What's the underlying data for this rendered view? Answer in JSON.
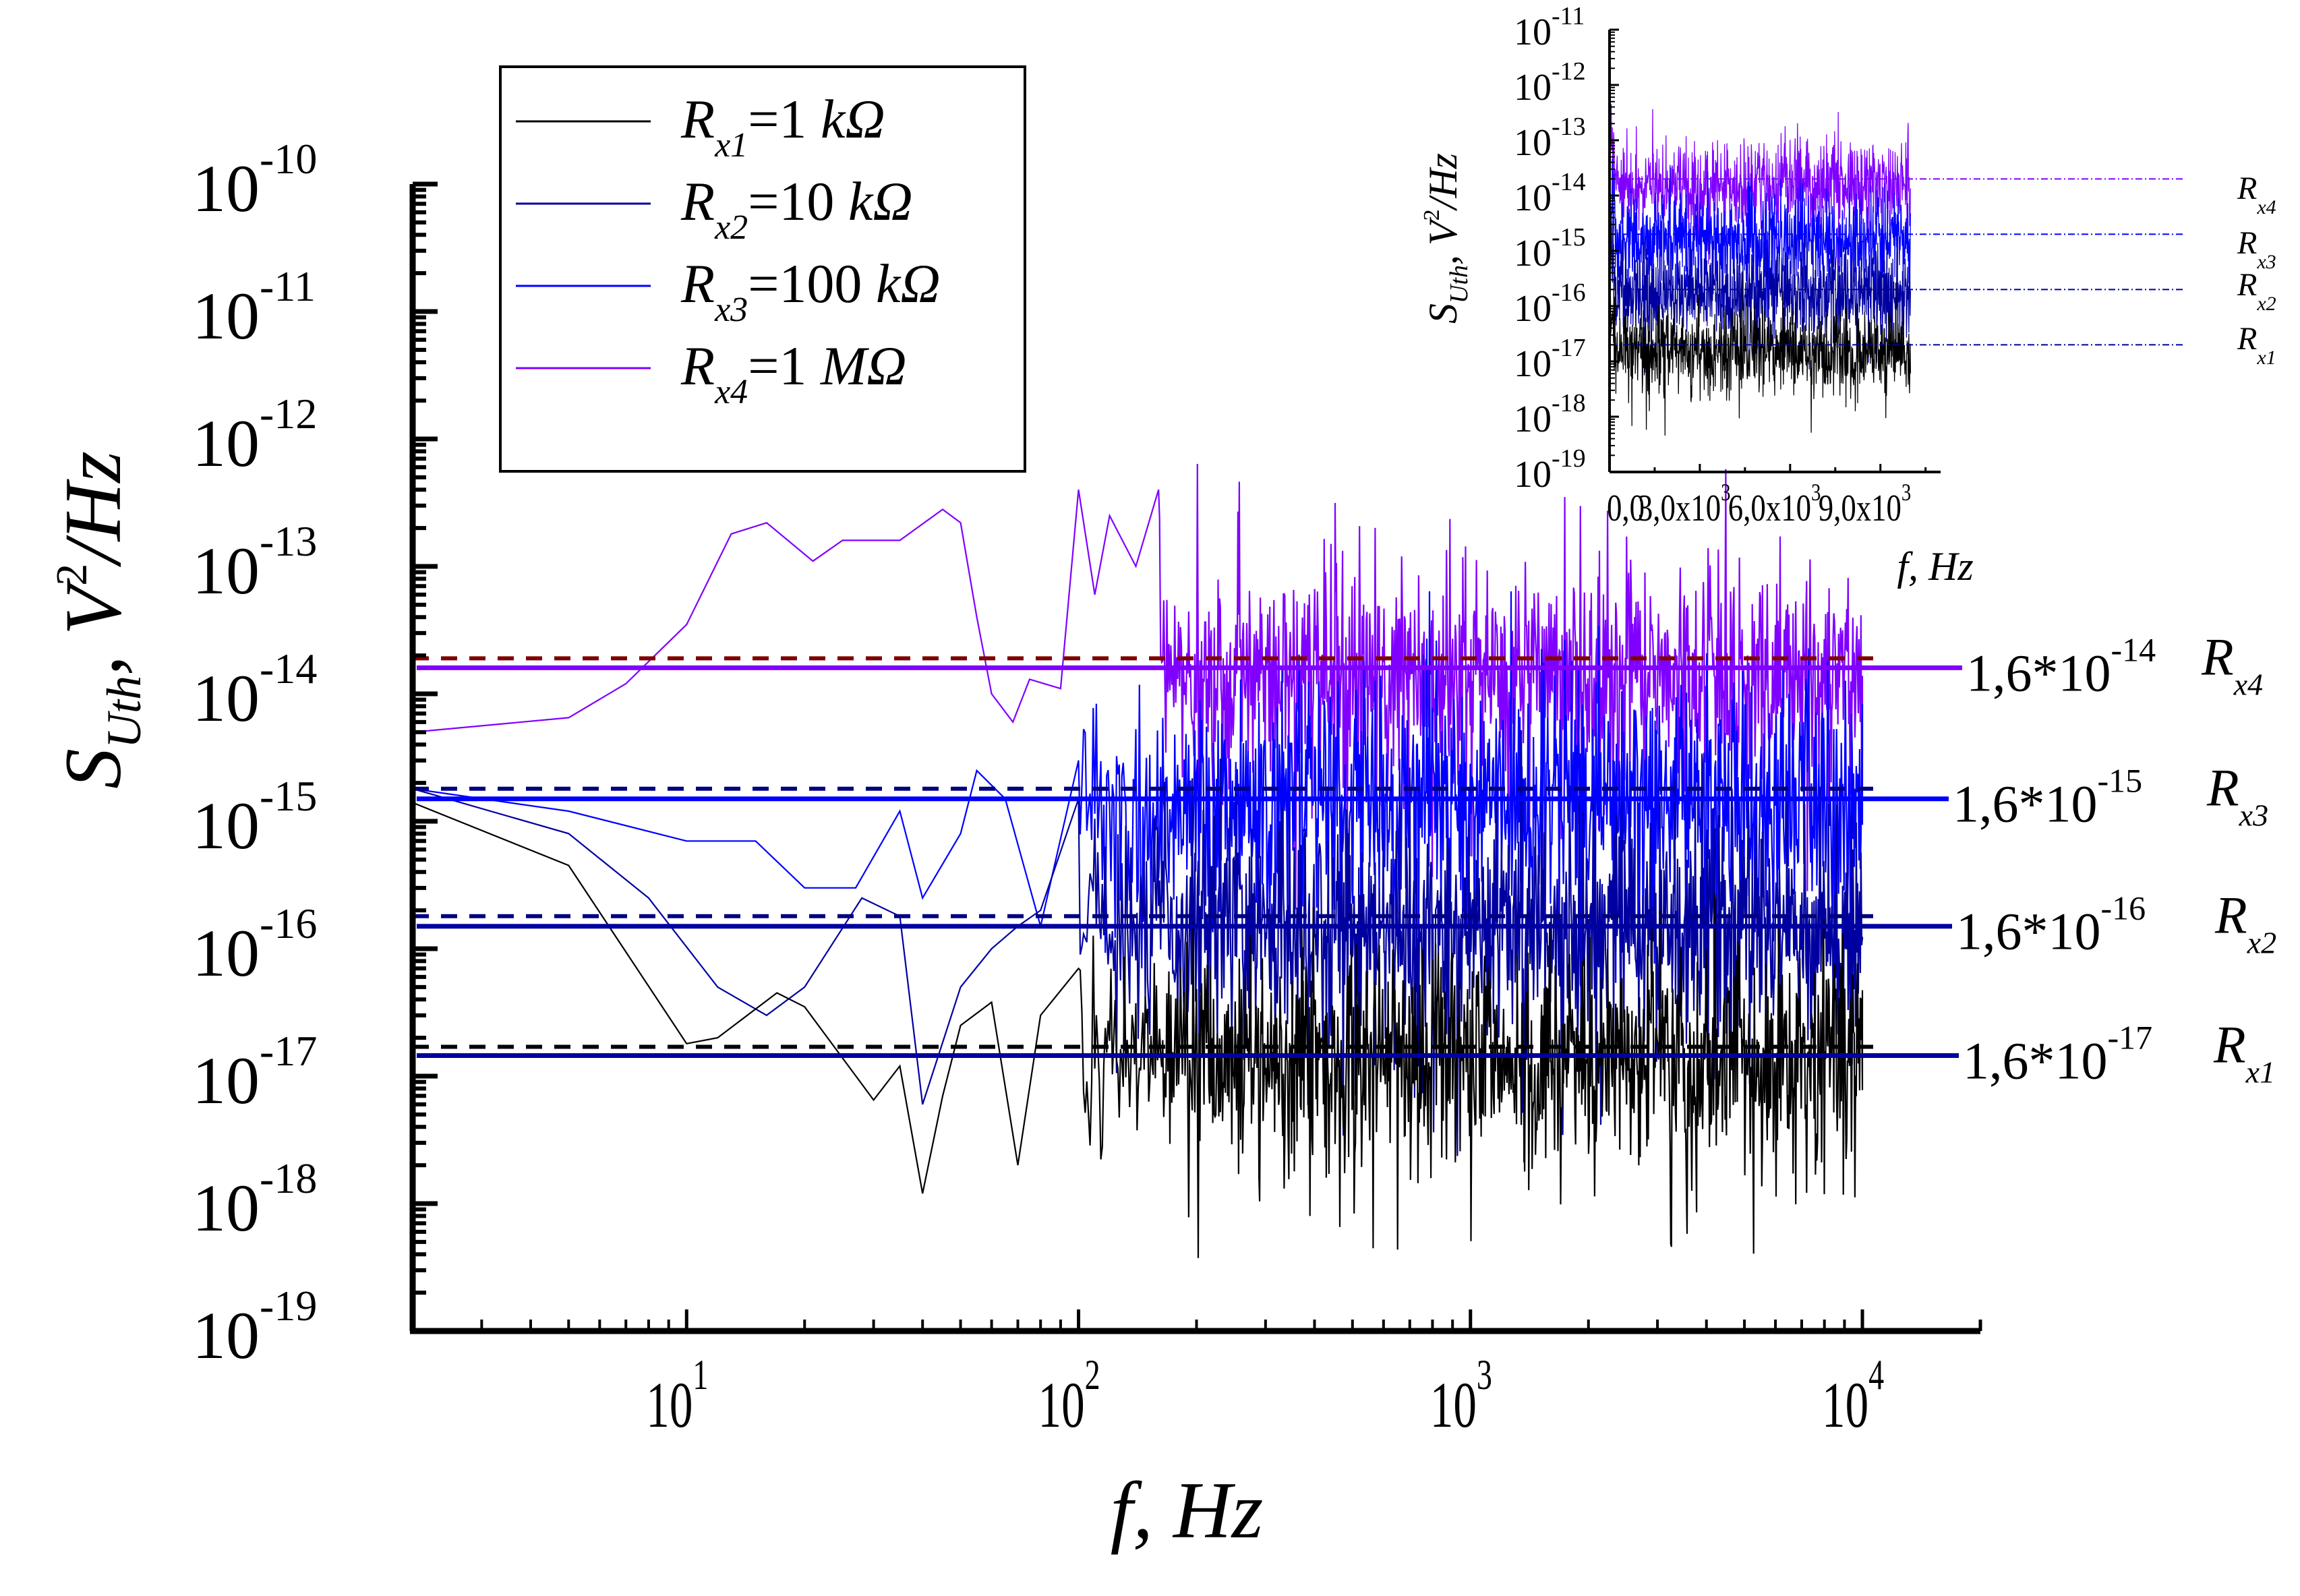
{
  "chart_data": [
    {
      "id": "main",
      "type": "line",
      "xscale": "log",
      "yscale": "log",
      "xlim": [
        2,
        20000
      ],
      "ylim": [
        1e-19,
        1e-10
      ],
      "xlabel": "f, Hz",
      "ylabel": {
        "main": "S",
        "sub": "Uth",
        "sep": ",",
        "unit_base": "V",
        "unit_sup": "2",
        "unit_rest": "/Hz"
      },
      "x_ticks": [
        {
          "base": "10",
          "exp": "1",
          "value": 10
        },
        {
          "base": "10",
          "exp": "2",
          "value": 100
        },
        {
          "base": "10",
          "exp": "3",
          "value": 1000
        },
        {
          "base": "10",
          "exp": "4",
          "value": 10000
        }
      ],
      "y_ticks": [
        {
          "base": "10",
          "exp": "-10",
          "value": 1e-10
        },
        {
          "base": "10",
          "exp": "-11",
          "value": 1e-11
        },
        {
          "base": "10",
          "exp": "-12",
          "value": 1e-12
        },
        {
          "base": "10",
          "exp": "-13",
          "value": 1e-13
        },
        {
          "base": "10",
          "exp": "-14",
          "value": 1e-14
        },
        {
          "base": "10",
          "exp": "-15",
          "value": 1e-15
        },
        {
          "base": "10",
          "exp": "-16",
          "value": 1e-16
        },
        {
          "base": "10",
          "exp": "-17",
          "value": 1e-17
        },
        {
          "base": "10",
          "exp": "-18",
          "value": 1e-18
        },
        {
          "base": "10",
          "exp": "-19",
          "value": 1e-19
        }
      ],
      "legend": {
        "placement": "top-left",
        "entries": [
          {
            "R": "R",
            "sub": "x1",
            "value": "=1 ",
            "unit": "kΩ",
            "color": "#000000"
          },
          {
            "R": "R",
            "sub": "x2",
            "value": "=10 ",
            "unit": "kΩ",
            "color": "#0000A0"
          },
          {
            "R": "R",
            "sub": "x3",
            "value": "=100 ",
            "unit": "kΩ",
            "color": "#0000FF"
          },
          {
            "R": "R",
            "sub": "x4",
            "value": "=1 ",
            "unit": "MΩ",
            "color": "#8000FF"
          }
        ]
      },
      "series": [
        {
          "name": "Rx1=1 kΩ",
          "color": "#000000",
          "x_start": 2,
          "x_end": 10000,
          "mean": 1.6e-17,
          "noise_decades": 0.55,
          "low_freq_points": [
            [
              2,
              1.4e-15
            ],
            [
              5,
              4.5e-16
            ],
            [
              10,
              1.8e-17
            ],
            [
              12,
              2e-17
            ],
            [
              17,
              4.5e-17
            ],
            [
              20,
              3.5e-17
            ],
            [
              30,
              6.5e-18
            ],
            [
              35,
              1.2e-17
            ],
            [
              40,
              1.2e-18
            ],
            [
              45,
              7e-18
            ],
            [
              50,
              2.5e-17
            ],
            [
              60,
              3.8e-17
            ],
            [
              70,
              2e-18
            ],
            [
              80,
              3e-17
            ],
            [
              100,
              7e-17
            ]
          ],
          "min_spike": 1.3e-19
        },
        {
          "name": "Rx2=10 kΩ",
          "color": "#0000A0",
          "x_start": 2,
          "x_end": 10000,
          "mean": 1.6e-16,
          "noise_decades": 0.6,
          "low_freq_points": [
            [
              2,
              1.8e-15
            ],
            [
              5,
              8e-16
            ],
            [
              8,
              2.5e-16
            ],
            [
              12,
              5e-17
            ],
            [
              16,
              3e-17
            ],
            [
              20,
              5e-17
            ],
            [
              28,
              2.5e-16
            ],
            [
              35,
              1.8e-16
            ],
            [
              40,
              6e-18
            ],
            [
              50,
              5e-17
            ],
            [
              60,
              1e-16
            ],
            [
              70,
              1.5e-16
            ],
            [
              80,
              2e-16
            ],
            [
              100,
              1.5e-15
            ]
          ],
          "min_spike": 3e-18
        },
        {
          "name": "Rx3=100 kΩ",
          "color": "#0000FF",
          "x_start": 2,
          "x_end": 10000,
          "mean": 1.6e-15,
          "noise_decades": 0.6,
          "low_freq_points": [
            [
              2,
              1.8e-15
            ],
            [
              5,
              1.2e-15
            ],
            [
              10,
              7e-16
            ],
            [
              15,
              7e-16
            ],
            [
              20,
              3e-16
            ],
            [
              27,
              3e-16
            ],
            [
              35,
              1.2e-15
            ],
            [
              40,
              2.5e-16
            ],
            [
              50,
              8e-16
            ],
            [
              55,
              2.5e-15
            ],
            [
              65,
              1.5e-15
            ],
            [
              80,
              1.5e-16
            ],
            [
              100,
              3e-15
            ]
          ],
          "min_spike": 2e-17
        },
        {
          "name": "Rx4=1 MΩ",
          "color": "#8000FF",
          "x_start": 2,
          "x_end": 10000,
          "mean": 1.6e-14,
          "noise_decades": 0.55,
          "low_freq_points": [
            [
              2,
              5e-15
            ],
            [
              5,
              6.5e-15
            ],
            [
              7,
              1.2e-14
            ],
            [
              10,
              3.5e-14
            ],
            [
              13,
              1.8e-13
            ],
            [
              16,
              2.2e-13
            ],
            [
              21,
              1.1e-13
            ],
            [
              25,
              1.6e-13
            ],
            [
              35,
              1.6e-13
            ],
            [
              45,
              2.8e-13
            ],
            [
              50,
              2.2e-13
            ],
            [
              55,
              4e-14
            ],
            [
              60,
              1e-14
            ],
            [
              68,
              6e-15
            ],
            [
              75,
              1.3e-14
            ],
            [
              90,
              1.1e-14
            ],
            [
              100,
              4e-13
            ],
            [
              110,
              6e-14
            ],
            [
              120,
              2.5e-13
            ],
            [
              140,
              1e-13
            ],
            [
              160,
              4e-13
            ]
          ],
          "max_spike": 7e-13
        }
      ],
      "reference_lines": [
        {
          "label_base": "1,6*10",
          "label_exp": "-14",
          "R": "R",
          "sub": "x4",
          "solid_value": 1.6e-14,
          "dashed_value": 1.9e-14,
          "solid_color": "#8000FF",
          "dashed_color": "#800000"
        },
        {
          "label_base": "1,6*10",
          "label_exp": "-15",
          "R": "R",
          "sub": "x3",
          "solid_value": 1.5e-15,
          "dashed_value": 1.8e-15,
          "solid_color": "#0000FF",
          "dashed_color": "#000080"
        },
        {
          "label_base": "1,6*10",
          "label_exp": "-16",
          "R": "R",
          "sub": "x2",
          "solid_value": 1.5e-16,
          "dashed_value": 1.8e-16,
          "solid_color": "#0000A0",
          "dashed_color": "#000080"
        },
        {
          "label_base": "1,6*10",
          "label_exp": "-17",
          "R": "R",
          "sub": "x1",
          "solid_value": 1.45e-17,
          "dashed_value": 1.7e-17,
          "solid_color": "#0000A0",
          "dashed_color": "#000000"
        }
      ]
    },
    {
      "id": "inset",
      "type": "line",
      "xscale": "linear",
      "yscale": "log",
      "xlim": [
        0,
        11000
      ],
      "ylim": [
        1e-19,
        1e-11
      ],
      "xlabel": "f, Hz",
      "ylabel": {
        "main": "S",
        "sub": "Uth",
        "sep": ",",
        "unit_base": "V",
        "unit_sup": "2",
        "unit_rest": "/Hz"
      },
      "x_ticks": [
        {
          "label": "0,0",
          "exp": "",
          "value": 0
        },
        {
          "label": "3,0x10",
          "exp": "3",
          "value": 3000
        },
        {
          "label": "6,0x10",
          "exp": "3",
          "value": 6000
        },
        {
          "label": "9,0x10",
          "exp": "3",
          "value": 9000
        }
      ],
      "y_ticks": [
        {
          "base": "10",
          "exp": "-11",
          "value": 1e-11
        },
        {
          "base": "10",
          "exp": "-12",
          "value": 1e-12
        },
        {
          "base": "10",
          "exp": "-13",
          "value": 1e-13
        },
        {
          "base": "10",
          "exp": "-14",
          "value": 1e-14
        },
        {
          "base": "10",
          "exp": "-15",
          "value": 1e-15
        },
        {
          "base": "10",
          "exp": "-16",
          "value": 1e-16
        },
        {
          "base": "10",
          "exp": "-17",
          "value": 1e-17
        },
        {
          "base": "10",
          "exp": "-18",
          "value": 1e-18
        },
        {
          "base": "10",
          "exp": "-19",
          "value": 1e-19
        }
      ],
      "series": [
        {
          "name": "Rx1",
          "color": "#000000",
          "x_start": 0,
          "x_end": 10000,
          "mean": 1.6e-17,
          "noise_decades": 0.5
        },
        {
          "name": "Rx2",
          "color": "#0000A0",
          "x_start": 0,
          "x_end": 10000,
          "mean": 1.6e-16,
          "noise_decades": 0.55
        },
        {
          "name": "Rx3",
          "color": "#0000FF",
          "x_start": 0,
          "x_end": 10000,
          "mean": 1.6e-15,
          "noise_decades": 0.55
        },
        {
          "name": "Rx4",
          "color": "#8000FF",
          "x_start": 0,
          "x_end": 10000,
          "mean": 1.6e-14,
          "noise_decades": 0.5
        }
      ],
      "reference_lines": [
        {
          "R": "R",
          "sub": "x4",
          "value": 2e-14,
          "color": "#8000FF"
        },
        {
          "R": "R",
          "sub": "x3",
          "value": 2e-15,
          "color": "#0000FF"
        },
        {
          "R": "R",
          "sub": "x2",
          "value": 2e-16,
          "color": "#0000A0"
        },
        {
          "R": "R",
          "sub": "x1",
          "value": 2e-17,
          "color": "#0000A0"
        }
      ]
    }
  ]
}
